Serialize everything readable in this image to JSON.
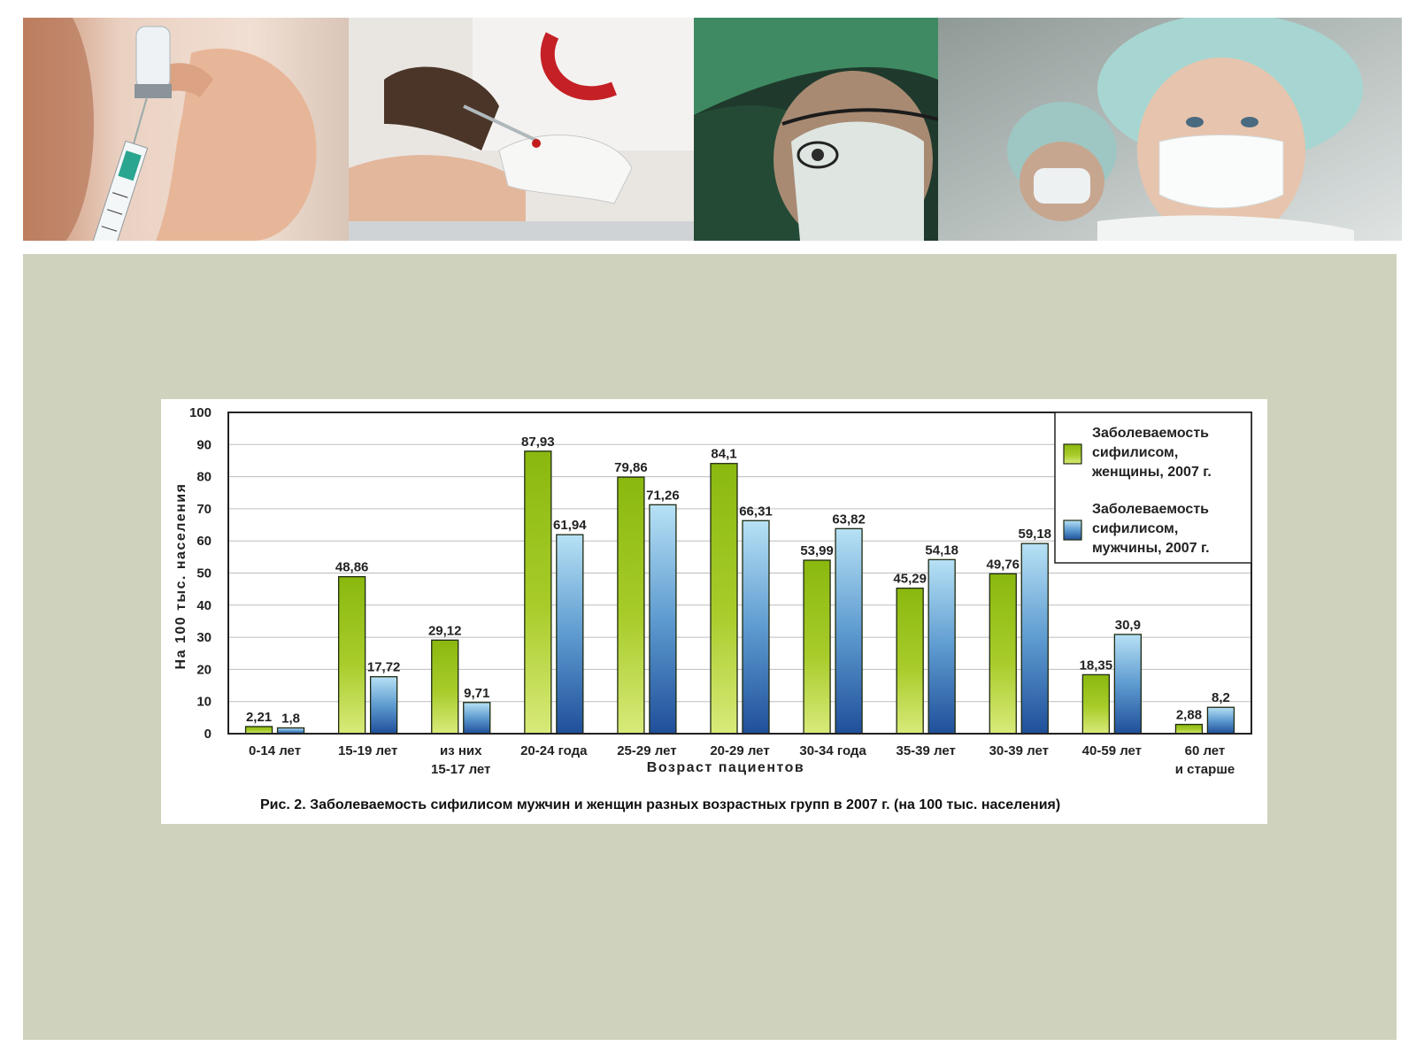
{
  "slide": {
    "photos": [
      {
        "icon": "syringe-vial-photo"
      },
      {
        "icon": "blood-test-photo"
      },
      {
        "icon": "surgeon-photo"
      },
      {
        "icon": "masked-nurses-photo"
      }
    ],
    "colors": {
      "panel": "#cfd3bd",
      "female": "#9dc21a",
      "male": "#4a86c2"
    }
  },
  "chart_data": {
    "type": "bar",
    "categories": [
      [
        "0-14 лет"
      ],
      [
        "15-19 лет"
      ],
      [
        "из них",
        "15-17 лет"
      ],
      [
        "20-24 года"
      ],
      [
        "25-29 лет"
      ],
      [
        "20-29 лет"
      ],
      [
        "30-34 года"
      ],
      [
        "35-39 лет"
      ],
      [
        "30-39 лет"
      ],
      [
        "40-59 лет"
      ],
      [
        "60 лет",
        "и старше"
      ]
    ],
    "series": [
      {
        "name": [
          "Заболеваемость",
          "сифилисом,",
          "женщины, 2007 г."
        ],
        "values": [
          2.21,
          48.86,
          29.12,
          87.93,
          79.86,
          84.1,
          53.99,
          45.29,
          49.76,
          18.35,
          2.88
        ],
        "labels": [
          "2,21",
          "48,86",
          "29,12",
          "87,93",
          "79,86",
          "84,1",
          "53,99",
          "45,29",
          "49,76",
          "18,35",
          "2,88"
        ]
      },
      {
        "name": [
          "Заболеваемость",
          "сифилисом,",
          "мужчины, 2007 г."
        ],
        "values": [
          1.8,
          17.72,
          9.71,
          61.94,
          71.26,
          66.31,
          63.82,
          54.18,
          59.18,
          30.9,
          8.2
        ],
        "labels": [
          "1,8",
          "17,72",
          "9,71",
          "61,94",
          "71,26",
          "66,31",
          "63,82",
          "54,18",
          "59,18",
          "30,9",
          "8,2"
        ]
      }
    ],
    "xlabel": "Возраст пациентов",
    "ylabel": "На 100 тыс. населения",
    "ylim": [
      0,
      100
    ],
    "yticks": [
      0,
      10,
      20,
      30,
      40,
      50,
      60,
      70,
      80,
      90,
      100
    ],
    "grid": true,
    "legend": "top-right",
    "caption": "Рис. 2. Заболеваемость сифилисом мужчин и женщин разных возрастных групп в 2007 г. (на 100 тыс. населения)"
  }
}
